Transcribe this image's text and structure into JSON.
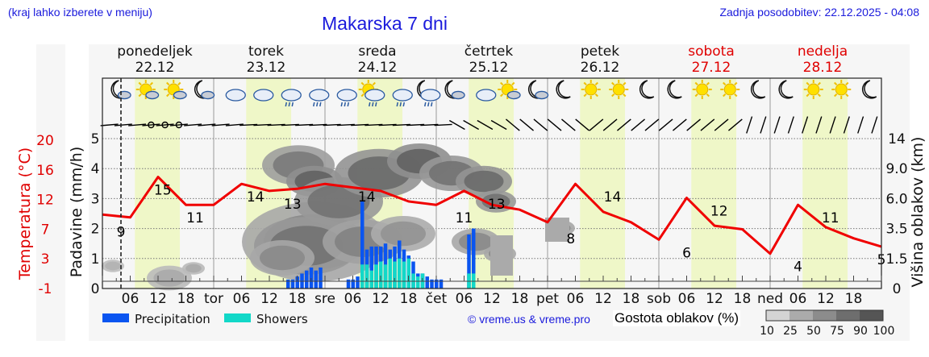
{
  "header": {
    "hint": "(kraj lahko izberete v meniju)",
    "title": "Makarska 7 dni",
    "updated": "Zadnja posodobitev: 22.12.2025 - 04:08"
  },
  "days": [
    {
      "name": "ponedeljek",
      "date": "22.12",
      "weekend": false
    },
    {
      "name": "torek",
      "date": "23.12",
      "weekend": false
    },
    {
      "name": "sreda",
      "date": "24.12",
      "weekend": false
    },
    {
      "name": "četrtek",
      "date": "25.12",
      "weekend": false
    },
    {
      "name": "petek",
      "date": "26.12",
      "weekend": false
    },
    {
      "name": "sobota",
      "date": "27.12",
      "weekend": true
    },
    {
      "name": "nedelja",
      "date": "28.12",
      "weekend": true
    }
  ],
  "axes": {
    "temperature_label": "Temperatura (°C)",
    "temperature_ticks": [
      "20",
      "16",
      "12",
      "7",
      "3",
      "-1"
    ],
    "precip_label": "Padavine (mm/h)",
    "precip_ticks": [
      "5",
      "4",
      "3",
      "2",
      "1",
      "0"
    ],
    "cloud_height_label": "Višina oblakov (km)",
    "cloud_height_ticks": [
      "14",
      "9.0",
      "6.0",
      "3.5",
      "1.5",
      "0"
    ],
    "x_ticks": [
      "06",
      "12",
      "18",
      "tor",
      "06",
      "12",
      "18",
      "sre",
      "06",
      "12",
      "18",
      "čet",
      "06",
      "12",
      "18",
      "pet",
      "06",
      "12",
      "18",
      "sob",
      "06",
      "12",
      "18",
      "ned",
      "06",
      "12",
      "18"
    ]
  },
  "legend": {
    "precipitation": "Precipitation",
    "showers": "Showers",
    "credit": "© vreme.us & vreme.pro",
    "cloud_density_label": "Gostota oblakov (%)",
    "cloud_density_ticks": [
      "10",
      "25",
      "50",
      "75",
      "90",
      "100"
    ],
    "colors": {
      "precipitation": "#0a55f0",
      "showers": "#12d8c8",
      "temperature": "#f00000",
      "daylight": "#eff7c8"
    }
  },
  "chart_data": {
    "type": "line",
    "title": "Makarska 7 dni",
    "xlabel": "",
    "ylabel": "Temperatura (°C)",
    "ylim_precip": [
      0,
      5.2
    ],
    "series": [
      {
        "name": "Temperatura (°C)",
        "hours": [
          0,
          6,
          12,
          18,
          24,
          30,
          36,
          42,
          48,
          54,
          60,
          66,
          72,
          78,
          84,
          90,
          96,
          102,
          108,
          114,
          120,
          126,
          132,
          138,
          144,
          150,
          156,
          162,
          168
        ],
        "values": [
          9.6,
          9.2,
          15,
          11,
          11,
          14,
          13,
          13.3,
          14,
          13.5,
          13,
          11.5,
          11,
          13,
          11,
          10.3,
          8.5,
          14,
          10,
          8.5,
          6,
          12,
          8,
          7.5,
          4,
          11,
          7.8,
          6.2,
          5
        ],
        "labels": [
          {
            "hour": 4,
            "value": 9
          },
          {
            "hour": 13,
            "value": 15
          },
          {
            "hour": 20,
            "value": 11
          },
          {
            "hour": 33,
            "value": 14
          },
          {
            "hour": 41,
            "value": 13
          },
          {
            "hour": 57,
            "value": 14
          },
          {
            "hour": 78,
            "value": 11
          },
          {
            "hour": 85,
            "value": 13
          },
          {
            "hour": 101,
            "value": 8
          },
          {
            "hour": 110,
            "value": 14
          },
          {
            "hour": 126,
            "value": 6
          },
          {
            "hour": 133,
            "value": 12
          },
          {
            "hour": 150,
            "value": 4
          },
          {
            "hour": 157,
            "value": 11
          },
          {
            "hour": 168,
            "value": 5
          }
        ]
      },
      {
        "name": "Precipitation",
        "hours": [
          40,
          41,
          42,
          43,
          44,
          45,
          46,
          47,
          53,
          54,
          55,
          56,
          57,
          58,
          59,
          60,
          61,
          62,
          63,
          64,
          65,
          66,
          67,
          68,
          69,
          70,
          71,
          72,
          73,
          79,
          80
        ],
        "values": [
          0.3,
          0.3,
          0.4,
          0.5,
          0.6,
          0.7,
          0.6,
          0.7,
          0.3,
          0.3,
          0.4,
          2.9,
          1.3,
          1.4,
          1.4,
          1.4,
          1.5,
          1.3,
          1.4,
          1.6,
          1.3,
          1.1,
          0.9,
          0.5,
          0.5,
          0.4,
          0.3,
          0.3,
          0.3,
          1.8,
          2.0
        ]
      },
      {
        "name": "Showers",
        "hours": [
          56,
          57,
          58,
          59,
          60,
          61,
          62,
          63,
          64,
          65,
          66,
          67,
          68,
          69,
          79,
          80
        ],
        "values": [
          0.8,
          0.8,
          0.6,
          0.8,
          0.9,
          0.8,
          1.0,
          0.9,
          1.0,
          0.9,
          1.0,
          0.5,
          0.4,
          0.5,
          0.5,
          0.5
        ]
      }
    ],
    "annotations": {
      "now_marker_hour": 4
    }
  }
}
